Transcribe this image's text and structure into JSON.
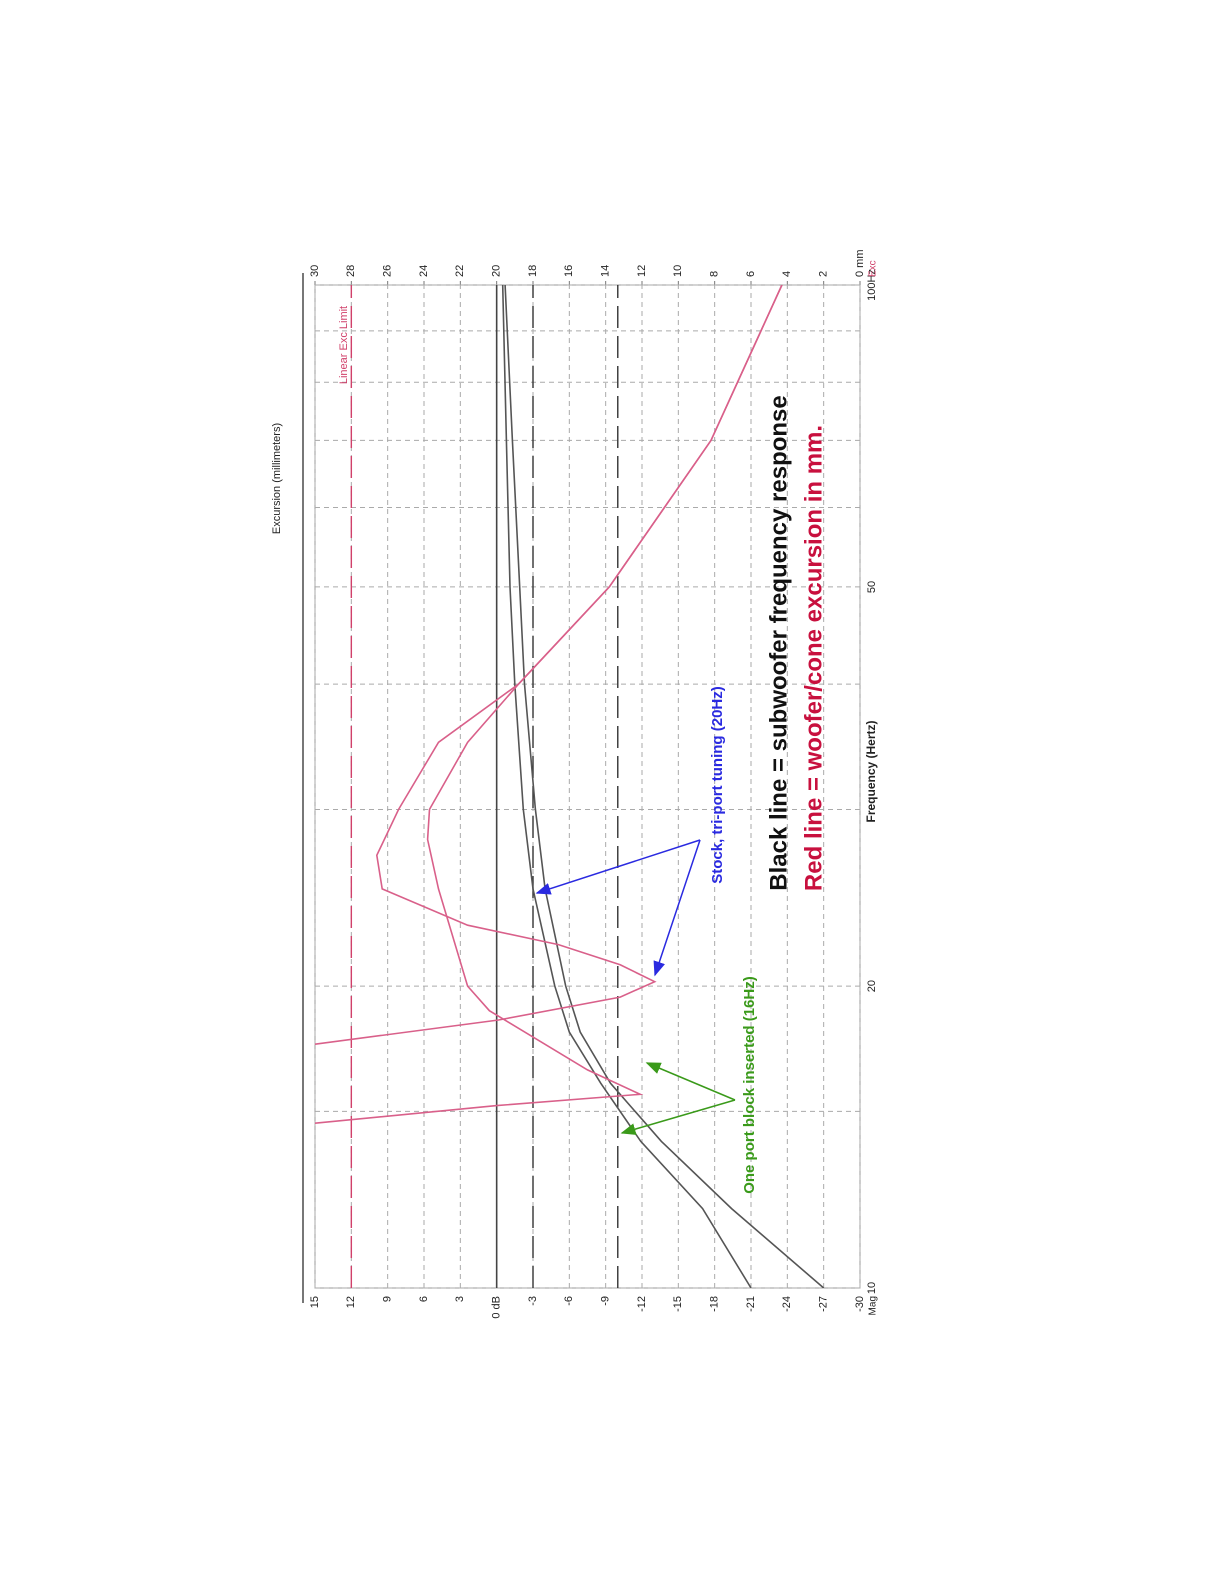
{
  "chart_data": {
    "type": "line",
    "title": "Black line = subwoofer frequency response",
    "subtitle": "Red line = woofer/cone excursion in mm.",
    "xlabel": "Frequency (Hertz)",
    "ylabel": "Mag",
    "y2label": "Excursion (millimeters)",
    "y2label_short": "Exc",
    "xscale": "log",
    "xlim": [
      10,
      100
    ],
    "xticks": [
      10,
      20,
      50,
      {
        "value": 100,
        "label": "100Hz"
      }
    ],
    "xminor": [
      15,
      30,
      40,
      60,
      70,
      80,
      90
    ],
    "ylim": [
      -30,
      15
    ],
    "yticks": [
      15,
      12,
      9,
      6,
      3,
      {
        "value": 0,
        "label": "0 dB"
      },
      -3,
      -6,
      -9,
      -12,
      -15,
      -18,
      -21,
      -24,
      -27,
      -30
    ],
    "y2lim": [
      0,
      30
    ],
    "y2ticks": [
      30,
      28,
      26,
      24,
      22,
      20,
      18,
      16,
      14,
      12,
      10,
      8,
      6,
      4,
      2,
      {
        "value": 0,
        "label": "0 mm"
      }
    ],
    "grid": true,
    "reference_lines": [
      {
        "axis": "y",
        "value": 0,
        "style": "solid",
        "color": "#444444"
      },
      {
        "axis": "y",
        "value": -3,
        "style": "dashed",
        "color": "#333333"
      },
      {
        "axis": "y",
        "value": -10,
        "style": "dashed",
        "color": "#333333"
      },
      {
        "axis": "y2",
        "value": 28,
        "style": "dashed",
        "color": "#d0406a",
        "label": "Linear Exc Limit"
      }
    ],
    "series": [
      {
        "color": "#555555",
        "axis": "y",
        "x": [
          10,
          12,
          14,
          16,
          18,
          20,
          25,
          30,
          40,
          50,
          70,
          100
        ],
        "values": [
          -21,
          -17,
          -11.9,
          -8.6,
          -6,
          -4.8,
          -3,
          -2.2,
          -1.5,
          -1.1,
          -0.8,
          -0.5
        ]
      },
      {
        "color": "#555555",
        "axis": "y",
        "x": [
          10,
          12,
          14,
          16,
          18,
          20,
          25,
          30,
          40,
          50,
          70,
          100
        ],
        "values": [
          -27,
          -19.4,
          -13.6,
          -9.4,
          -6.9,
          -5.7,
          -4,
          -3.2,
          -2.3,
          -1.9,
          -1.3,
          -0.7
        ]
      },
      {
        "color": "#d9608a",
        "axis": "y2",
        "x": [
          14.6,
          15.2,
          15.6,
          16.5,
          18.9,
          20,
          25,
          28,
          30,
          35,
          40,
          50,
          70,
          100
        ],
        "values": [
          30,
          20,
          12.1,
          15,
          20.4,
          21.6,
          23.2,
          23.8,
          23.7,
          21.6,
          18.8,
          13.8,
          8.2,
          4.3
        ]
      },
      {
        "color": "#d9608a",
        "axis": "y2",
        "x": [
          17.5,
          18.5,
          19.5,
          20.2,
          21,
          22,
          23,
          25,
          27,
          30,
          35,
          40,
          50,
          70,
          100
        ],
        "values": [
          30,
          19.9,
          13.2,
          11.3,
          13.2,
          16.6,
          21.6,
          26.3,
          26.6,
          25.4,
          23.2,
          18.8,
          13.8,
          8.2,
          4.3
        ]
      }
    ],
    "annotations": [
      {
        "text": "Stock, tri-port tuning (20Hz)",
        "color": "#2a2ae0"
      },
      {
        "text": "One port block inserted (16Hz)",
        "color": "#3a9a1a"
      }
    ]
  }
}
